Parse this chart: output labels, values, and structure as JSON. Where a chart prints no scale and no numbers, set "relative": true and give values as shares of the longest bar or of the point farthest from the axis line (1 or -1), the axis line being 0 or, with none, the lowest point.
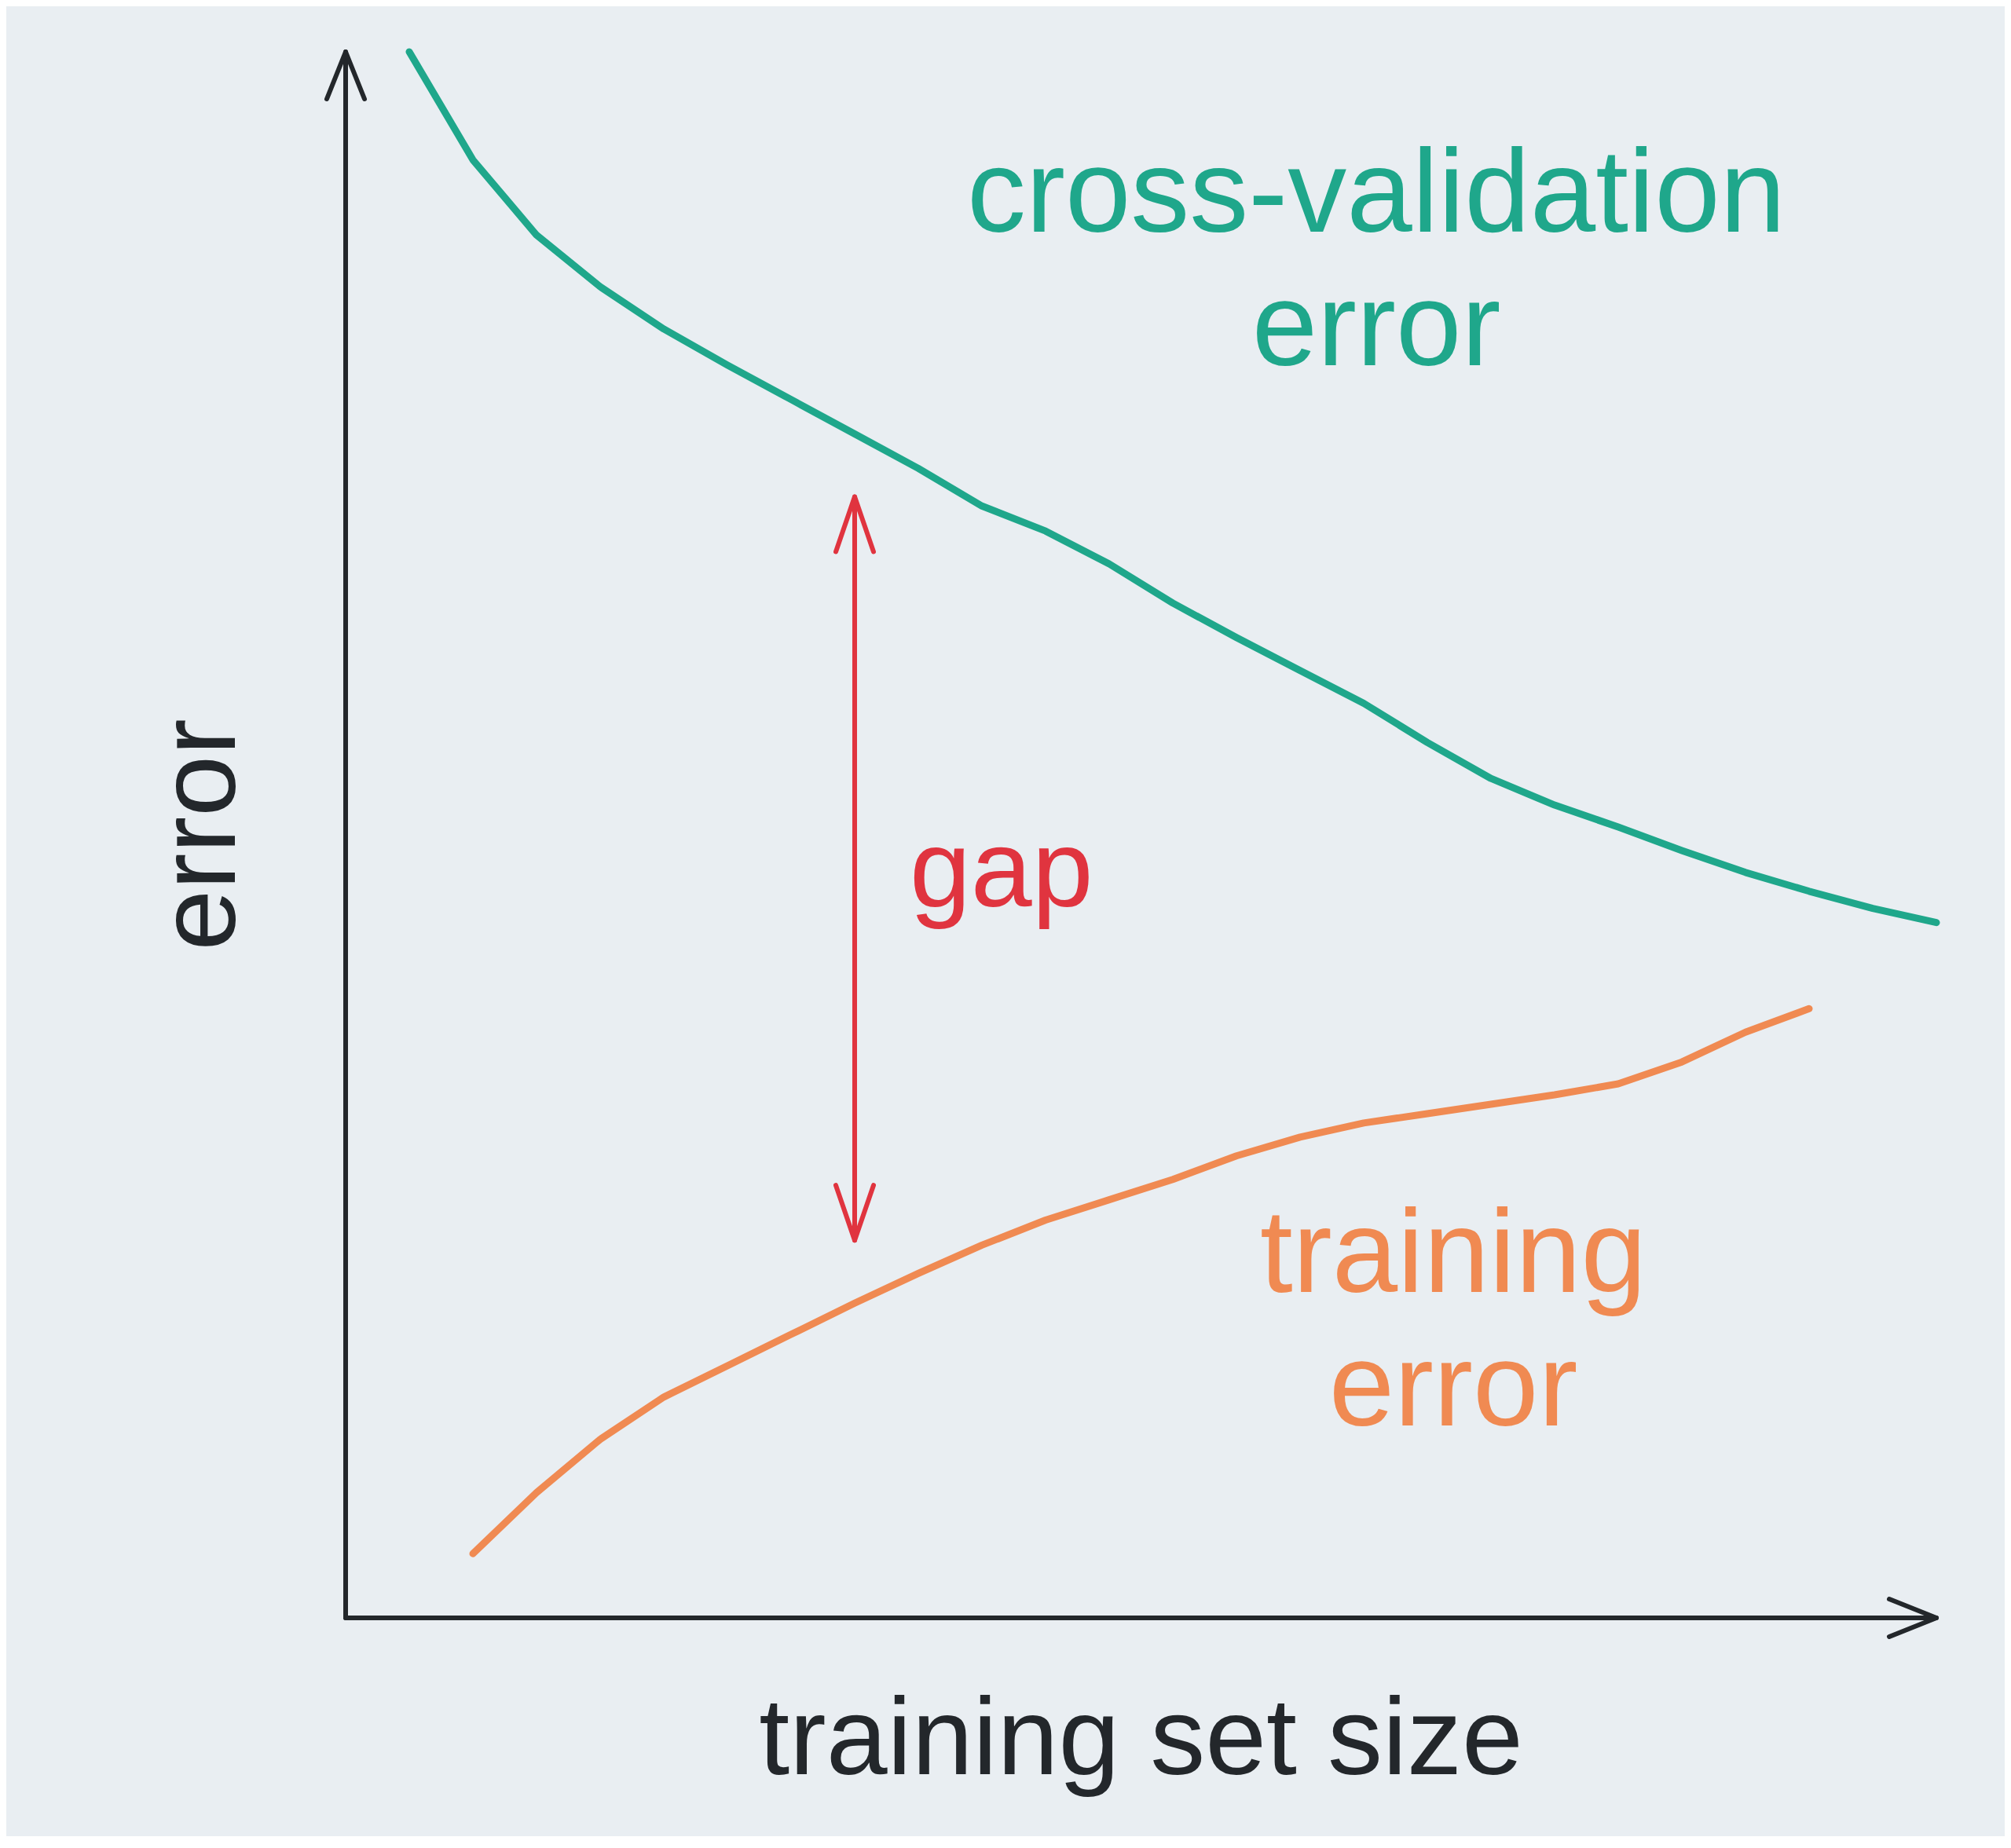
{
  "chart_data": {
    "type": "line",
    "relative": true,
    "categories": [
      null,
      null,
      null,
      null,
      null,
      null,
      null,
      null,
      null,
      null,
      null,
      null,
      null,
      null,
      null,
      null,
      null,
      null,
      null,
      null,
      null,
      null,
      null,
      null,
      null,
      null
    ],
    "xlabel": "training set size",
    "ylabel": "error",
    "series": [
      {
        "name": "cross-validation error",
        "color": "#1fa78b",
        "values": [
          null,
          1,
          0.931,
          0.883,
          0.85,
          0.823,
          0.8,
          0.778,
          0.756,
          0.734,
          0.71,
          0.694,
          0.673,
          0.648,
          0.626,
          0.605,
          0.584,
          0.559,
          0.536,
          0.519,
          0.505,
          0.49,
          0.476,
          0.464,
          0.453,
          0.444
        ]
      },
      {
        "name": "training error",
        "color": "#f08a52",
        "values": [
          null,
          null,
          0.041,
          0.08,
          0.114,
          0.141,
          0.161,
          0.181,
          0.201,
          0.22,
          0.238,
          0.254,
          0.267,
          0.28,
          0.295,
          0.307,
          0.316,
          0.322,
          0.328,
          0.334,
          0.341,
          0.355,
          0.374,
          0.389,
          null,
          null
        ]
      }
    ],
    "annotations": [
      "gap"
    ],
    "marker": "none",
    "line_style": "solid"
  }
}
